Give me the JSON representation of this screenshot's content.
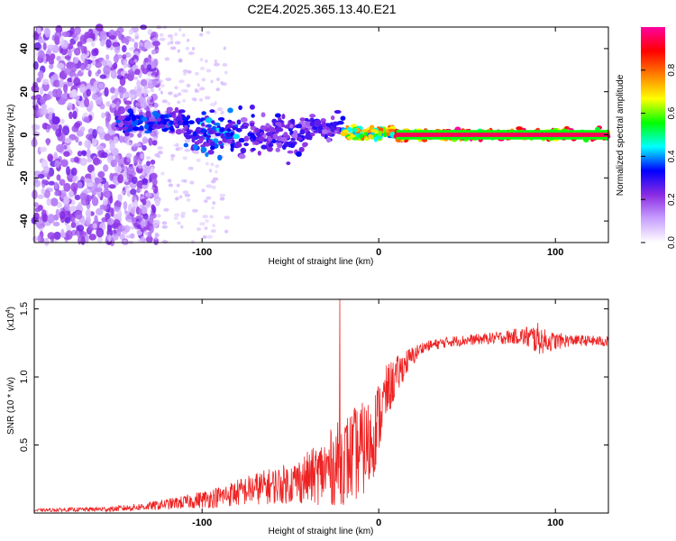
{
  "title": "C2E4.2025.365.13.40.E21",
  "chart_data": [
    {
      "type": "heatmap",
      "panel": "top",
      "xlabel": "Height of straight line (km)",
      "ylabel": "Frequency (Hz)",
      "xlim": [
        -195,
        130
      ],
      "ylim": [
        -50,
        50
      ],
      "xticks": [
        -100,
        0,
        100
      ],
      "yticks": [
        -40,
        -20,
        0,
        20,
        40
      ],
      "colorbar": {
        "label": "Normalized spectral amplitude",
        "range": [
          0,
          1
        ],
        "ticks": [
          0.0,
          0.2,
          0.4,
          0.6,
          0.8
        ],
        "tick_labels": [
          "0.0",
          "0.2",
          "0.4",
          "0.6",
          "0.8"
        ],
        "colors": [
          "#ffffff",
          "#c8a0ff",
          "#8a2be2",
          "#0000ff",
          "#00ffff",
          "#00ff00",
          "#ffff00",
          "#ff8000",
          "#ff0000",
          "#ff00a0"
        ]
      },
      "features": {
        "noise_region_x": [
          -195,
          -125
        ],
        "band_segments": [
          {
            "x": [
              -148,
              -110
            ],
            "center_hz": 6,
            "width_hz": 5,
            "amp": 0.35
          },
          {
            "x": [
              -110,
              -80
            ],
            "center_hz": 0,
            "width_hz": 8,
            "amp": 0.4
          },
          {
            "x": [
              -80,
              -40
            ],
            "center_hz": 0,
            "width_hz": 10,
            "amp": 0.3
          },
          {
            "x": [
              -40,
              -20
            ],
            "center_hz": 3,
            "width_hz": 4,
            "amp": 0.3
          },
          {
            "x": [
              -20,
              10
            ],
            "center_hz": 1,
            "width_hz": 3,
            "amp": 0.75
          },
          {
            "x": [
              10,
              130
            ],
            "center_hz": 0,
            "width_hz": 2,
            "amp": 0.95
          }
        ]
      }
    },
    {
      "type": "line",
      "panel": "bottom",
      "xlabel": "Height of straight line (km)",
      "ylabel": "SNR (10 * v/v)",
      "y_multiplier": "(x10",
      "y_multiplier_exp": "4",
      "y_multiplier_close": ")",
      "xlim": [
        -195,
        130
      ],
      "ylim": [
        0,
        1.57
      ],
      "xticks": [
        -100,
        0,
        100
      ],
      "yticks": [
        0.5,
        1.0,
        1.5
      ],
      "ytick_labels": [
        "0.5",
        "1.0",
        "1.5"
      ],
      "series": [
        {
          "name": "SNR",
          "color": "#ee2222",
          "envelope": {
            "x": [
              -195,
              -150,
              -130,
              -110,
              -90,
              -70,
              -50,
              -35,
              -25,
              -15,
              -5,
              5,
              15,
              25,
              40,
              60,
              80,
              90,
              95,
              110,
              130
            ],
            "mean": [
              0.02,
              0.03,
              0.05,
              0.08,
              0.12,
              0.18,
              0.22,
              0.28,
              0.35,
              0.42,
              0.5,
              0.9,
              1.1,
              1.22,
              1.26,
              1.28,
              1.3,
              1.28,
              1.26,
              1.27,
              1.26
            ],
            "noise": [
              0.01,
              0.02,
              0.03,
              0.05,
              0.08,
              0.12,
              0.15,
              0.22,
              0.3,
              0.35,
              0.35,
              0.2,
              0.1,
              0.04,
              0.04,
              0.04,
              0.06,
              0.12,
              0.08,
              0.04,
              0.04
            ]
          },
          "peak": {
            "x": -22,
            "y": 1.57
          }
        }
      ]
    }
  ]
}
